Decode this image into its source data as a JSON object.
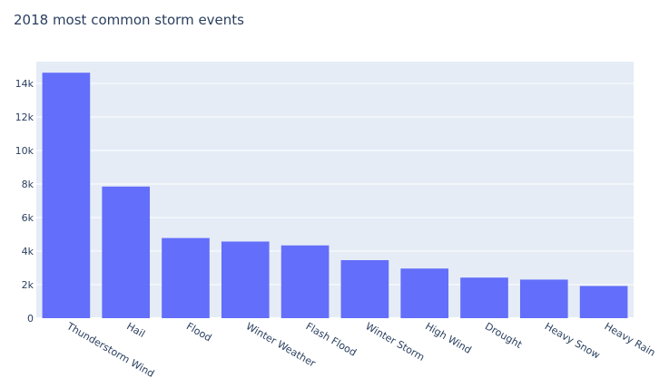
{
  "chart_data": {
    "type": "bar",
    "title": "2018 most common storm events",
    "xlabel": "",
    "ylabel": "",
    "categories": [
      "Thunderstorm Wind",
      "Hail",
      "Flood",
      "Winter Weather",
      "Flash Flood",
      "Winter Storm",
      "High Wind",
      "Drought",
      "Heavy Snow",
      "Heavy Rain"
    ],
    "values": [
      14640,
      7850,
      4780,
      4570,
      4340,
      3460,
      2960,
      2420,
      2300,
      1920
    ],
    "ylim": [
      0,
      15300
    ],
    "yticks": [
      0,
      2000,
      4000,
      6000,
      8000,
      10000,
      12000,
      14000
    ],
    "ytick_labels": [
      "0",
      "2k",
      "4k",
      "6k",
      "8k",
      "10k",
      "12k",
      "14k"
    ],
    "grid": true,
    "colors": {
      "bar": "#636efa",
      "plot_bg": "#e5ecf6",
      "grid": "#ffffff",
      "text": "#2a3f5f"
    }
  }
}
